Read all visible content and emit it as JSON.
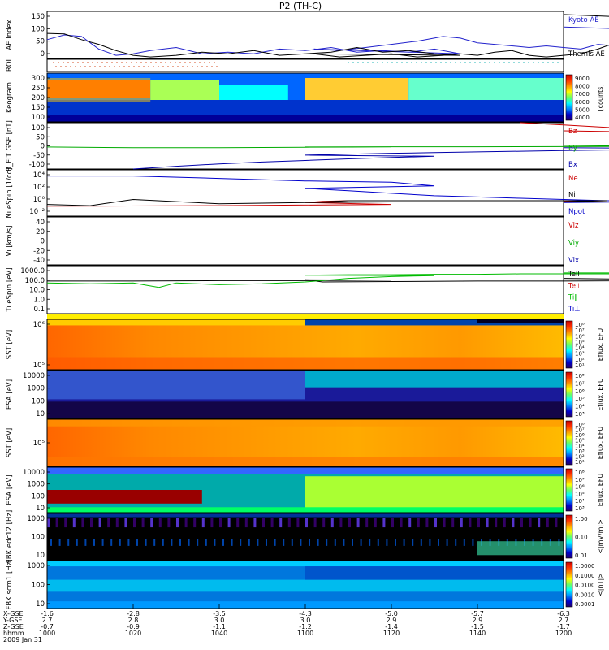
{
  "title": "P2 (TH-C)",
  "colors": {
    "kyoto": "#2222cc",
    "themis": "#000000",
    "bz": "#cc0000",
    "by": "#00aa00",
    "bx": "#0000aa",
    "ne": "#cc0000",
    "ni": "#0000cc",
    "npot": "#000000",
    "telli": "#000000",
    "tperp": "#00bb00"
  },
  "chart_data": [
    {
      "type": "line",
      "id": "ae",
      "ylabel": "AE Index",
      "yticks": [
        "150",
        "100",
        "50",
        "0"
      ],
      "ylim": [
        0,
        150
      ],
      "series": [
        {
          "name": "Kyoto AE",
          "color": "#2222cc",
          "x": [
            1000,
            1004,
            1008,
            1012,
            1016,
            1020,
            1024,
            1030,
            1036,
            1042,
            1048,
            1054,
            1060,
            1066,
            1072,
            1078,
            1084,
            1090,
            1096,
            1102,
            1108,
            1114,
            1120,
            1126,
            1132,
            1136,
            1140,
            1144,
            1148,
            1152,
            1156,
            1160,
            1164,
            1168,
            1172,
            1176,
            1180,
            1184,
            1188,
            1192,
            1196,
            1200
          ],
          "y": [
            60,
            75,
            70,
            30,
            10,
            15,
            25,
            35,
            15,
            20,
            15,
            30,
            25,
            35,
            20,
            25,
            20,
            30,
            15,
            30,
            25,
            35,
            45,
            55,
            70,
            65,
            50,
            45,
            40,
            35,
            40,
            35,
            30,
            45,
            40,
            50,
            50,
            55,
            80,
            110,
            85,
            100
          ]
        },
        {
          "name": "Themis AE",
          "color": "#000000",
          "x": [
            1000,
            1004,
            1008,
            1012,
            1016,
            1020,
            1024,
            1030,
            1036,
            1042,
            1048,
            1054,
            1060,
            1066,
            1072,
            1078,
            1084,
            1090,
            1096,
            1102,
            1108,
            1114,
            1120,
            1126,
            1132,
            1136,
            1140,
            1144,
            1148,
            1152,
            1156,
            1160,
            1164,
            1168,
            1172,
            1176,
            1180,
            1184,
            1188,
            1192,
            1196,
            1200
          ],
          "y": [
            80,
            78,
            60,
            45,
            25,
            10,
            5,
            10,
            20,
            15,
            25,
            10,
            15,
            20,
            35,
            20,
            25,
            15,
            10,
            15,
            5,
            10,
            15,
            5,
            10,
            15,
            10,
            20,
            25,
            10,
            5,
            10,
            15,
            30,
            50,
            55,
            65,
            70,
            80,
            90,
            120,
            140
          ]
        }
      ]
    },
    {
      "type": "markers",
      "id": "roi",
      "ylabel": "ROI"
    },
    {
      "type": "heatmap",
      "id": "keogram",
      "ylabel": "Keogram",
      "yticks": [
        "300",
        "250",
        "200",
        "150",
        "100"
      ],
      "ylim": [
        100,
        300
      ],
      "colorbar": {
        "label": "[counts]",
        "ticks": [
          "9000",
          "8000",
          "7000",
          "6000",
          "5000",
          "4000"
        ]
      }
    },
    {
      "type": "line",
      "id": "bfield",
      "ylabel": "B_FIT GSE [nT]",
      "yticks": [
        "100",
        "50",
        "0",
        "-50",
        "-100"
      ],
      "ylim": [
        -100,
        100
      ],
      "series": [
        {
          "name": "Bz",
          "color": "#cc0000",
          "x": [
            1150,
            1160,
            1170,
            1180,
            1190,
            1196,
            1200
          ],
          "y": [
            100,
            90,
            80,
            70,
            60,
            55,
            65
          ]
        },
        {
          "name": "By",
          "color": "#00aa00",
          "x": [
            1000,
            1020,
            1040,
            1060,
            1080,
            1100,
            1120,
            1140,
            1160,
            1180,
            1200
          ],
          "y": [
            -5,
            -8,
            -8,
            -6,
            -5,
            -5,
            -4,
            -4,
            -3,
            -2,
            2
          ]
        },
        {
          "name": "Bx",
          "color": "#0000aa",
          "x": [
            1020,
            1030,
            1040,
            1050,
            1060,
            1070,
            1080,
            1090,
            1100,
            1110,
            1120,
            1130,
            1140,
            1150,
            1160,
            1170,
            1180,
            1190,
            1200
          ],
          "y": [
            -100,
            -88,
            -78,
            -70,
            -63,
            -56,
            -50,
            -45,
            -40,
            -36,
            -32,
            -29,
            -26,
            -23,
            -20,
            -18,
            -16,
            -12,
            -8
          ]
        }
      ]
    },
    {
      "type": "line",
      "id": "density",
      "ylabel": "Ni eSpin [1/cc]",
      "yticks": [
        "10⁴",
        "10²",
        "10⁰",
        "10⁻²"
      ],
      "ylim": [
        -2.5,
        5
      ],
      "series": [
        {
          "name": "Ni",
          "color": "#0000cc",
          "x": [
            1000,
            1020,
            1040,
            1060,
            1080,
            1090,
            1100,
            1110,
            1120,
            1130,
            1140,
            1150,
            1160,
            1170,
            1180,
            1190,
            1200
          ],
          "y": [
            4,
            4,
            3.6,
            3.2,
            3,
            2.4,
            2,
            1.6,
            1.2,
            0.8,
            0.6,
            0.4,
            0.2,
            0,
            0,
            -0.1,
            -0.3
          ]
        },
        {
          "name": "Ne",
          "color": "#cc0000",
          "x": [
            1000,
            1040,
            1080,
            1100,
            1104,
            1110,
            1140,
            1170,
            1200
          ],
          "y": [
            -0.9,
            -0.8,
            -0.6,
            -0.3,
            -0.1,
            0,
            0,
            0,
            -0.1
          ]
        },
        {
          "name": "Npot",
          "color": "#000000",
          "x": [
            1000,
            1010,
            1020,
            1040,
            1060,
            1080,
            1100,
            1110,
            1140,
            1170,
            1200
          ],
          "y": [
            -0.6,
            -0.8,
            0.2,
            -0.5,
            -0.3,
            -0.2,
            -0.3,
            0,
            0,
            0,
            -0.2
          ]
        }
      ]
    },
    {
      "type": "line",
      "id": "velocity",
      "ylabel": "Vi [km/s]",
      "yticks": [
        "40",
        "20",
        "0",
        "-20",
        "-40"
      ],
      "ylim": [
        -50,
        50
      ],
      "series": [
        {
          "name": "Vix",
          "color": "#000000",
          "x": [
            1000,
            1200
          ],
          "y": [
            0,
            0
          ]
        }
      ]
    },
    {
      "type": "line",
      "id": "temperature",
      "ylabel": "Ti eSpin [eV]",
      "yticks": [
        "1000.0",
        "100.0",
        "10.0",
        "1.0",
        "0.1"
      ],
      "ylim": [
        -1.3,
        4
      ],
      "series": [
        {
          "name": "Tell",
          "color": "#000000",
          "x": [
            1000,
            1020,
            1040,
            1060,
            1080,
            1100,
            1104,
            1120,
            1140,
            1160,
            1180,
            1196,
            1200
          ],
          "y": [
            2.3,
            2.3,
            2.35,
            2.35,
            2.4,
            2.45,
            2.2,
            2.25,
            2.3,
            2.3,
            2.35,
            2.4,
            2.6
          ]
        },
        {
          "name": "Te⊥",
          "color": "#00bb00",
          "x": [
            1000,
            1010,
            1020,
            1026,
            1030,
            1040,
            1050,
            1060,
            1070,
            1080,
            1090,
            1100,
            1110,
            1120,
            1130,
            1140,
            1150,
            1160,
            1170,
            1180,
            1190,
            1200
          ],
          "y": [
            2.1,
            2,
            2.1,
            1.6,
            2.1,
            1.9,
            2,
            2.2,
            2.6,
            2.8,
            2.9,
            2.95,
            3,
            3,
            3.05,
            3.05,
            3.1,
            3.1,
            3.1,
            3.15,
            3.2,
            3.2
          ]
        }
      ]
    },
    {
      "type": "heatmap",
      "id": "sst-i",
      "ylabel": "SST [eV]",
      "yticks": [
        "10⁶",
        "10⁵"
      ],
      "colorbar": {
        "label": "Eflux, EFU",
        "ticks": [
          "10⁸",
          "10⁷",
          "10⁶",
          "10⁵",
          "10⁴",
          "10³",
          "10²",
          "10¹"
        ]
      }
    },
    {
      "type": "heatmap",
      "id": "esa-i",
      "ylabel": "ESA [eV]",
      "yticks": [
        "10000",
        "1000",
        "100",
        "10"
      ],
      "colorbar": {
        "label": "Eflux, EFU",
        "ticks": [
          "10⁸",
          "10⁷",
          "10⁶",
          "10⁵",
          "10⁴",
          "10³"
        ]
      }
    },
    {
      "type": "heatmap",
      "id": "sst-e",
      "ylabel": "SST [eV]",
      "yticks": [
        "10⁵"
      ],
      "colorbar": {
        "label": "Eflux, EFU",
        "ticks": [
          "10⁸",
          "10⁷",
          "10⁶",
          "10⁵",
          "10⁴",
          "10³",
          "10²",
          "10¹"
        ]
      }
    },
    {
      "type": "heatmap",
      "id": "esa-e",
      "ylabel": "ESA [eV]",
      "yticks": [
        "10000",
        "1000",
        "100",
        "10"
      ],
      "colorbar": {
        "label": "Eflux, EFU",
        "ticks": [
          "10⁸",
          "10⁷",
          "10⁶",
          "10⁵",
          "10⁴",
          "10³"
        ]
      }
    },
    {
      "type": "heatmap",
      "id": "fbk-e",
      "ylabel": "FBK edc12 [Hz]",
      "yticks": [
        "1000",
        "100",
        "10"
      ],
      "colorbar": {
        "label": "<|mV/m|>",
        "ticks": [
          "1.00",
          "0.10",
          "0.01"
        ]
      }
    },
    {
      "type": "heatmap",
      "id": "fbk-b",
      "ylabel": "FBK scm1 [Hz]",
      "yticks": [
        "1000",
        "100",
        "10"
      ],
      "colorbar": {
        "label": "<|nT|>",
        "ticks": [
          "1.0000",
          "0.1000",
          "0.0100",
          "0.0010",
          "0.0001"
        ]
      }
    }
  ],
  "legends": {
    "ae": [
      "Kyoto AE",
      "Themis AE"
    ],
    "bfield": [
      "Bz",
      "By",
      "Bx"
    ],
    "density": [
      "Ne",
      "Ni",
      "Npot"
    ],
    "velocity": [
      "Viz",
      "Viy",
      "Vix"
    ],
    "temperature": [
      "Tell",
      "Te⊥",
      "Ti∥",
      "Ti⊥"
    ]
  },
  "xaxis": {
    "row_labels": [
      "X-GSE",
      "Y-GSE",
      "Z-GSE",
      "hhmm",
      "2009 Jan 31"
    ],
    "ticks": [
      {
        "x": 1000,
        "vals": [
          "-1.6",
          "2.7",
          "-0.7",
          "1000"
        ]
      },
      {
        "x": 1020,
        "vals": [
          "-2.8",
          "2.8",
          "-0.9",
          "1020"
        ]
      },
      {
        "x": 1040,
        "vals": [
          "-3.5",
          "3.0",
          "-1.1",
          "1040"
        ]
      },
      {
        "x": 1100,
        "vals": [
          "-4.3",
          "3.0",
          "-1.2",
          "1100"
        ]
      },
      {
        "x": 1120,
        "vals": [
          "-5.0",
          "2.9",
          "-1.4",
          "1120"
        ]
      },
      {
        "x": 1140,
        "vals": [
          "-5.7",
          "2.9",
          "-1.5",
          "1140"
        ]
      },
      {
        "x": 1200,
        "vals": [
          "-6.3",
          "2.7",
          "-1.7",
          "1200"
        ]
      }
    ]
  }
}
